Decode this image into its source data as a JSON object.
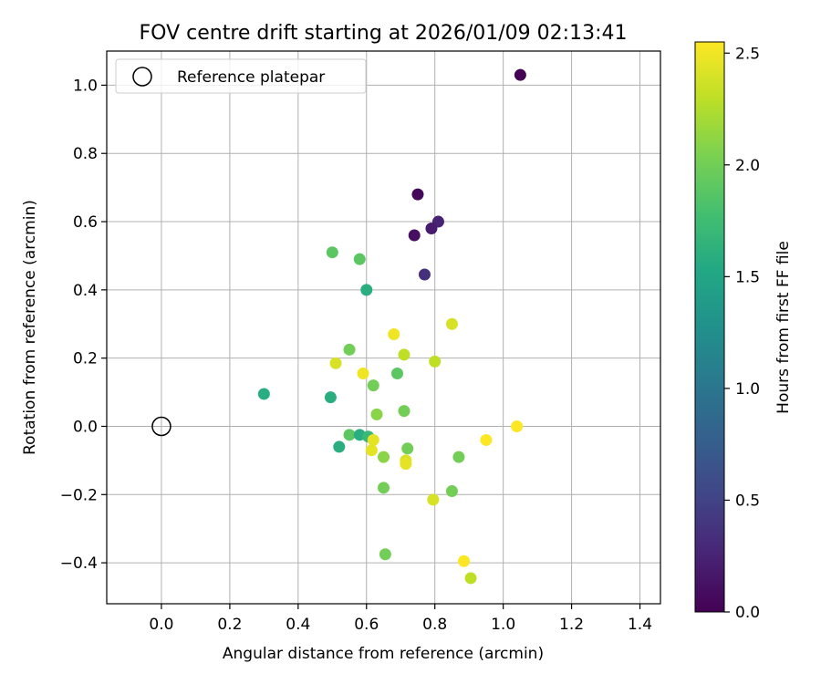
{
  "chart_data": {
    "type": "scatter",
    "title": "FOV centre drift starting at 2026/01/09 02:13:41",
    "xlabel": "Angular distance from reference (arcmin)",
    "ylabel": "Rotation from reference (arcmin)",
    "xlim": [
      -0.16,
      1.46
    ],
    "ylim": [
      -0.52,
      1.1
    ],
    "xticks": [
      0.0,
      0.2,
      0.4,
      0.6,
      0.8,
      1.0,
      1.2,
      1.4
    ],
    "xtick_labels": [
      "0.0",
      "0.2",
      "0.4",
      "0.6",
      "0.8",
      "1.0",
      "1.2",
      "1.4"
    ],
    "yticks": [
      -0.4,
      -0.2,
      0.0,
      0.2,
      0.4,
      0.6,
      0.8,
      1.0
    ],
    "ytick_labels": [
      "−0.4",
      "−0.2",
      "0.0",
      "0.2",
      "0.4",
      "0.6",
      "0.8",
      "1.0"
    ],
    "grid": true,
    "legend": {
      "position": "top-left",
      "entries": [
        "Reference platepar"
      ]
    },
    "reference": {
      "label": "Reference platepar",
      "x": 0.0,
      "y": 0.0
    },
    "colorbar": {
      "label": "Hours from first FF file",
      "range": [
        0.0,
        2.55
      ],
      "ticks": [
        0.0,
        0.5,
        1.0,
        1.5,
        2.0,
        2.5
      ],
      "tick_labels": [
        "0.0",
        "0.5",
        "1.0",
        "1.5",
        "2.0",
        "2.5"
      ],
      "colormap": "viridis"
    },
    "points": [
      {
        "x": 1.05,
        "y": 1.03,
        "hours": 0.0
      },
      {
        "x": 0.75,
        "y": 0.68,
        "hours": 0.05
      },
      {
        "x": 0.81,
        "y": 0.6,
        "hours": 0.25
      },
      {
        "x": 0.79,
        "y": 0.58,
        "hours": 0.2
      },
      {
        "x": 0.74,
        "y": 0.56,
        "hours": 0.1
      },
      {
        "x": 0.77,
        "y": 0.445,
        "hours": 0.35
      },
      {
        "x": 0.5,
        "y": 0.51,
        "hours": 1.9
      },
      {
        "x": 0.58,
        "y": 0.49,
        "hours": 1.9
      },
      {
        "x": 0.6,
        "y": 0.4,
        "hours": 1.6
      },
      {
        "x": 0.85,
        "y": 0.3,
        "hours": 2.4
      },
      {
        "x": 0.68,
        "y": 0.27,
        "hours": 2.5
      },
      {
        "x": 0.55,
        "y": 0.225,
        "hours": 2.0
      },
      {
        "x": 0.71,
        "y": 0.21,
        "hours": 2.3
      },
      {
        "x": 0.8,
        "y": 0.19,
        "hours": 2.3
      },
      {
        "x": 0.51,
        "y": 0.185,
        "hours": 2.4
      },
      {
        "x": 0.59,
        "y": 0.155,
        "hours": 2.5
      },
      {
        "x": 0.69,
        "y": 0.155,
        "hours": 1.9
      },
      {
        "x": 0.62,
        "y": 0.12,
        "hours": 2.0
      },
      {
        "x": 0.3,
        "y": 0.095,
        "hours": 1.6
      },
      {
        "x": 0.495,
        "y": 0.085,
        "hours": 1.6
      },
      {
        "x": 0.71,
        "y": 0.045,
        "hours": 2.0
      },
      {
        "x": 0.63,
        "y": 0.035,
        "hours": 2.1
      },
      {
        "x": 1.04,
        "y": 0.0,
        "hours": 2.55
      },
      {
        "x": 0.55,
        "y": -0.025,
        "hours": 1.9
      },
      {
        "x": 0.58,
        "y": -0.025,
        "hours": 1.6
      },
      {
        "x": 0.605,
        "y": -0.03,
        "hours": 1.7
      },
      {
        "x": 0.62,
        "y": -0.04,
        "hours": 2.45
      },
      {
        "x": 0.95,
        "y": -0.04,
        "hours": 2.55
      },
      {
        "x": 0.52,
        "y": -0.06,
        "hours": 1.6
      },
      {
        "x": 0.72,
        "y": -0.065,
        "hours": 2.0
      },
      {
        "x": 0.615,
        "y": -0.07,
        "hours": 2.45
      },
      {
        "x": 0.65,
        "y": -0.09,
        "hours": 2.1
      },
      {
        "x": 0.87,
        "y": -0.09,
        "hours": 2.0
      },
      {
        "x": 0.715,
        "y": -0.1,
        "hours": 2.4
      },
      {
        "x": 0.715,
        "y": -0.11,
        "hours": 2.45
      },
      {
        "x": 0.65,
        "y": -0.18,
        "hours": 2.0
      },
      {
        "x": 0.85,
        "y": -0.19,
        "hours": 2.0
      },
      {
        "x": 0.795,
        "y": -0.215,
        "hours": 2.4
      },
      {
        "x": 0.655,
        "y": -0.375,
        "hours": 2.0
      },
      {
        "x": 0.885,
        "y": -0.395,
        "hours": 2.55
      },
      {
        "x": 0.905,
        "y": -0.445,
        "hours": 2.3
      }
    ]
  }
}
